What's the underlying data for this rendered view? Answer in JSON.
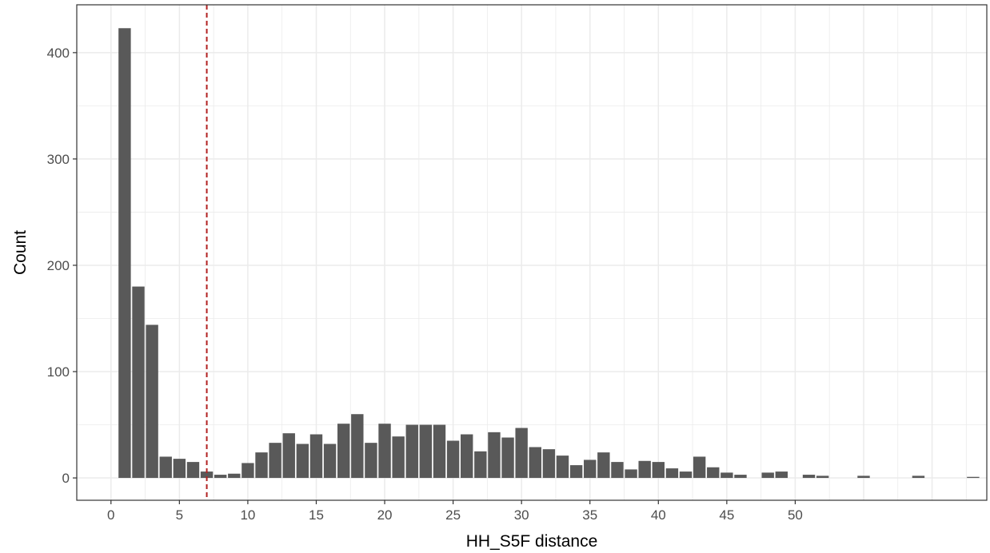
{
  "chart_data": {
    "type": "bar",
    "title": "",
    "xlabel": "HH_S5F distance",
    "ylabel": "Count",
    "xlim": [
      -2.5,
      64
    ],
    "ylim": [
      -21,
      445
    ],
    "x_ticks": [
      0,
      5,
      10,
      15,
      20,
      25,
      30,
      35,
      40,
      45,
      50
    ],
    "y_ticks": [
      0,
      100,
      200,
      300,
      400
    ],
    "grid": true,
    "legend": "none",
    "reference_line": {
      "x": 7,
      "style": "dashed",
      "color": "#b22222"
    },
    "colors": {
      "bar": "#595959",
      "grid": "#ebebeb",
      "panel_border": "#333333"
    },
    "x": [
      1,
      2,
      3,
      4,
      5,
      6,
      7,
      8,
      9,
      10,
      11,
      12,
      13,
      14,
      15,
      16,
      17,
      18,
      19,
      20,
      21,
      22,
      23,
      24,
      25,
      26,
      27,
      28,
      29,
      30,
      31,
      32,
      33,
      34,
      35,
      36,
      37,
      38,
      39,
      40,
      41,
      42,
      43,
      44,
      45,
      46,
      47,
      48,
      49,
      50,
      51,
      52,
      53,
      54,
      55,
      56,
      57,
      58,
      59,
      60,
      61,
      62,
      63
    ],
    "values": [
      423,
      180,
      144,
      20,
      18,
      15,
      6,
      3,
      4,
      14,
      24,
      33,
      42,
      32,
      41,
      32,
      51,
      60,
      33,
      51,
      39,
      50,
      50,
      50,
      35,
      41,
      25,
      43,
      38,
      47,
      29,
      27,
      21,
      12,
      17,
      24,
      15,
      8,
      16,
      15,
      9,
      6,
      20,
      10,
      5,
      3,
      0,
      5,
      6,
      0,
      3,
      2,
      0,
      0,
      2,
      0,
      0,
      0,
      2,
      0,
      0,
      0,
      1
    ]
  }
}
